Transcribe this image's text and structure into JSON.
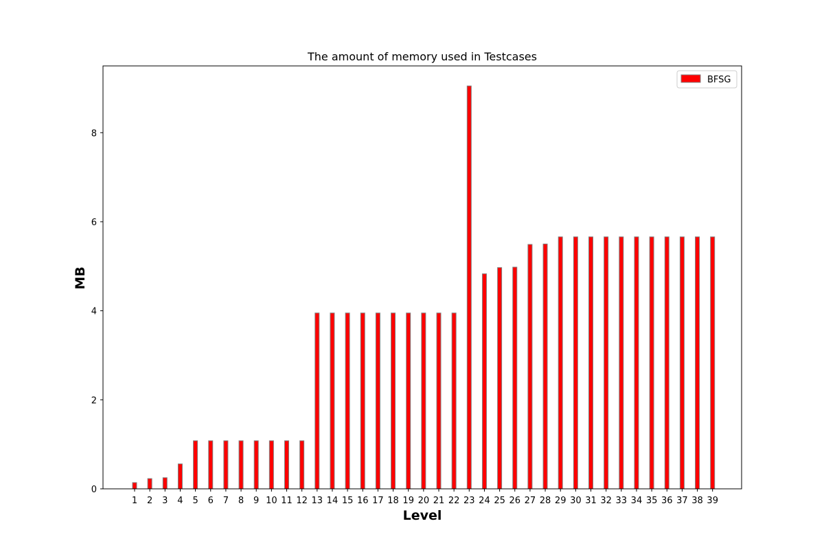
{
  "chart_data": {
    "type": "bar",
    "title": "The amount of memory used in  Testcases",
    "xlabel": "Level",
    "ylabel": "MB",
    "categories": [
      "1",
      "2",
      "3",
      "4",
      "5",
      "6",
      "7",
      "8",
      "9",
      "10",
      "11",
      "12",
      "13",
      "14",
      "15",
      "16",
      "17",
      "18",
      "19",
      "20",
      "21",
      "22",
      "23",
      "24",
      "25",
      "26",
      "27",
      "28",
      "29",
      "30",
      "31",
      "32",
      "33",
      "34",
      "35",
      "36",
      "37",
      "38",
      "39"
    ],
    "series": [
      {
        "name": "BFSG",
        "color": "#ff0000",
        "edge_color": "#808080",
        "values": [
          0.14,
          0.23,
          0.25,
          0.56,
          1.08,
          1.08,
          1.08,
          1.08,
          1.08,
          1.08,
          1.08,
          1.08,
          3.95,
          3.95,
          3.95,
          3.95,
          3.95,
          3.95,
          3.95,
          3.95,
          3.95,
          3.95,
          9.05,
          4.83,
          4.97,
          4.98,
          5.49,
          5.5,
          5.66,
          5.66,
          5.66,
          5.66,
          5.66,
          5.66,
          5.66,
          5.66,
          5.66,
          5.66,
          5.66
        ]
      }
    ],
    "yticks": [
      0,
      2,
      4,
      6,
      8
    ],
    "ylim": [
      0,
      9.5
    ],
    "grid": false,
    "legend_position": "top-right"
  }
}
